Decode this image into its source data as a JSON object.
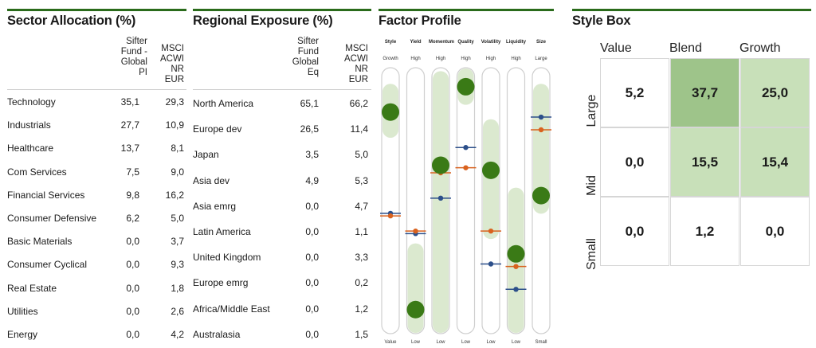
{
  "sector": {
    "title": "Sector Allocation (%)",
    "col1": "Sifter Fund - Global PI",
    "col2": "MSCI ACWI NR EUR",
    "rows": [
      {
        "label": "Technology",
        "fund": "35,1",
        "bench": "29,3"
      },
      {
        "label": "Industrials",
        "fund": "27,7",
        "bench": "10,9"
      },
      {
        "label": "Healthcare",
        "fund": "13,7",
        "bench": "8,1"
      },
      {
        "label": "Com Services",
        "fund": "7,5",
        "bench": "9,0"
      },
      {
        "label": "Financial Services",
        "fund": "9,8",
        "bench": "16,2"
      },
      {
        "label": "Consumer Defensive",
        "fund": "6,2",
        "bench": "5,0"
      },
      {
        "label": "Basic Materials",
        "fund": "0,0",
        "bench": "3,7"
      },
      {
        "label": "Consumer Cyclical",
        "fund": "0,0",
        "bench": "9,3"
      },
      {
        "label": "Real Estate",
        "fund": "0,0",
        "bench": "1,8"
      },
      {
        "label": "Utilities",
        "fund": "0,0",
        "bench": "2,6"
      },
      {
        "label": "Energy",
        "fund": "0,0",
        "bench": "4,2"
      }
    ]
  },
  "regional": {
    "title": "Regional Exposure (%)",
    "col1": "Sifter Fund Global Eq",
    "col2": "MSCI ACWI NR EUR",
    "rows": [
      {
        "label": "North America",
        "fund": "65,1",
        "bench": "66,2"
      },
      {
        "label": "Europe dev",
        "fund": "26,5",
        "bench": "11,4"
      },
      {
        "label": "Japan",
        "fund": "3,5",
        "bench": "5,0"
      },
      {
        "label": "Asia dev",
        "fund": "4,9",
        "bench": "5,3"
      },
      {
        "label": "Asia emrg",
        "fund": "0,0",
        "bench": "4,7"
      },
      {
        "label": "Latin America",
        "fund": "0,0",
        "bench": "1,1"
      },
      {
        "label": "United Kingdom",
        "fund": "0,0",
        "bench": "3,3"
      },
      {
        "label": "Europe emrg",
        "fund": "0,0",
        "bench": "0,2"
      },
      {
        "label": "Africa/Middle East",
        "fund": "0,0",
        "bench": "1,2"
      },
      {
        "label": "Australasia",
        "fund": "0,0",
        "bench": "1,5"
      }
    ]
  },
  "factor": {
    "title": "Factor Profile",
    "colors": {
      "fund": "#3a7a16",
      "band": "#dbe9cf",
      "orange": "#d9621e",
      "blue": "#2c4f8a",
      "track": "#cfcfcf"
    },
    "factors": [
      {
        "name": "Style",
        "top": "Growth",
        "bottom": "Value",
        "fund": 0.85,
        "band": [
          0.78,
          0.93
        ],
        "orange": 0.44,
        "blue": 0.45
      },
      {
        "name": "Yield",
        "top": "High",
        "bottom": "Low",
        "fund": 0.07,
        "band": [
          0.0,
          0.3
        ],
        "orange": 0.38,
        "blue": 0.37
      },
      {
        "name": "Momentum",
        "top": "High",
        "bottom": "Low",
        "fund": 0.64,
        "band": [
          0.0,
          0.98
        ],
        "orange": 0.61,
        "blue": 0.51
      },
      {
        "name": "Quality",
        "top": "High",
        "bottom": "Low",
        "fund": 0.95,
        "band": [
          0.91,
          1.0
        ],
        "orange": 0.63,
        "blue": 0.71
      },
      {
        "name": "Volatility",
        "top": "High",
        "bottom": "Low",
        "fund": 0.62,
        "band": [
          0.38,
          0.79
        ],
        "orange": 0.38,
        "blue": 0.25
      },
      {
        "name": "Liquidity",
        "top": "High",
        "bottom": "Low",
        "fund": 0.29,
        "band": [
          0.0,
          0.52
        ],
        "orange": 0.24,
        "blue": 0.15
      },
      {
        "name": "Size",
        "top": "Large",
        "bottom": "Small",
        "fund": 0.52,
        "band": [
          0.48,
          0.93
        ],
        "orange": 0.78,
        "blue": 0.83
      }
    ]
  },
  "stylebox": {
    "title": "Style Box",
    "cols": [
      "Value",
      "Blend",
      "Growth"
    ],
    "rows": [
      "Large",
      "Mid",
      "Small"
    ],
    "cells": [
      [
        "5,2",
        "37,7",
        "25,0"
      ],
      [
        "0,0",
        "15,5",
        "15,4"
      ],
      [
        "0,0",
        "1,2",
        "0,0"
      ]
    ],
    "shades": [
      [
        "#ffffff",
        "#9ec48a",
        "#c8e0b9"
      ],
      [
        "#ffffff",
        "#c8e0b9",
        "#c8e0b9"
      ],
      [
        "#ffffff",
        "#ffffff",
        "#ffffff"
      ]
    ]
  }
}
